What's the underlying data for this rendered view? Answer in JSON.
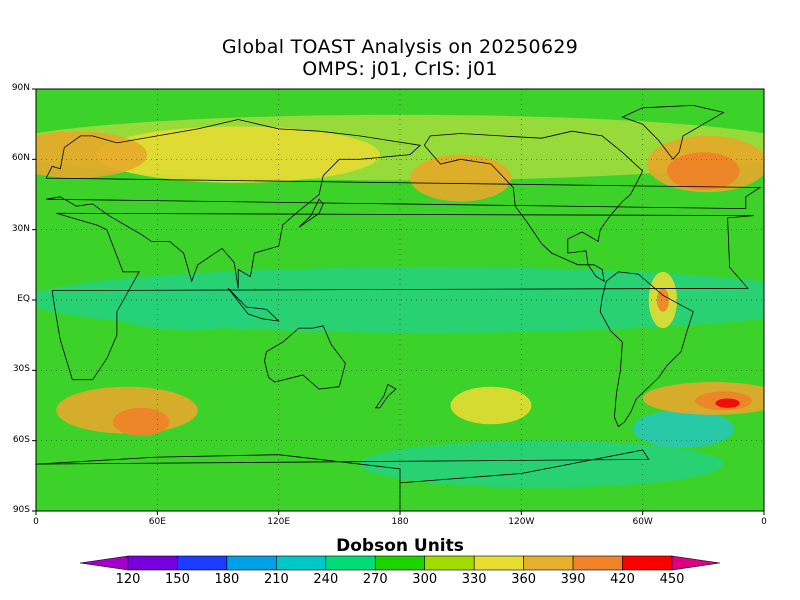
{
  "title": {
    "line1": "Global TOAST Analysis on 20250629",
    "line2": "OMPS: j01, CrIS: j01"
  },
  "map": {
    "projection": "cylindrical-equidistant",
    "lon_range": [
      0,
      360
    ],
    "lat_range": [
      -90,
      90
    ],
    "grid": "dotted",
    "lat_ticks": [
      {
        "value": 90,
        "label": "90N"
      },
      {
        "value": 60,
        "label": "60N"
      },
      {
        "value": 30,
        "label": "30N"
      },
      {
        "value": 0,
        "label": "EQ"
      },
      {
        "value": -30,
        "label": "30S"
      },
      {
        "value": -60,
        "label": "60S"
      },
      {
        "value": -90,
        "label": "90S"
      }
    ],
    "lon_ticks": [
      {
        "value": 0,
        "label": "0"
      },
      {
        "value": 60,
        "label": "60E"
      },
      {
        "value": 120,
        "label": "120E"
      },
      {
        "value": 180,
        "label": "180"
      },
      {
        "value": 240,
        "label": "120W"
      },
      {
        "value": 300,
        "label": "60W"
      },
      {
        "value": 360,
        "label": "0"
      }
    ],
    "background_level_color": "#3cd22a",
    "ozone_regions": [
      {
        "name": "tropical band",
        "lon": 195,
        "lat": 0,
        "rlon": 200,
        "rlat": 14,
        "color": "#26d27a"
      },
      {
        "name": "indian ocean low",
        "lon": 75,
        "lat": -3,
        "rlon": 40,
        "rlat": 10,
        "color": "#26d27a"
      },
      {
        "name": "south atlantic low",
        "lon": 320,
        "lat": -55,
        "rlon": 25,
        "rlat": 8,
        "color": "#26c8b4"
      },
      {
        "name": "southern ocean low",
        "lon": 250,
        "lat": -70,
        "rlon": 90,
        "rlat": 10,
        "color": "#26d27a"
      },
      {
        "name": "northern high band",
        "lon": 180,
        "lat": 65,
        "rlon": 200,
        "rlat": 14,
        "color": "#a0dc3c"
      },
      {
        "name": "east asia high",
        "lon": 100,
        "lat": 62,
        "rlon": 70,
        "rlat": 12,
        "color": "#e6dc32"
      },
      {
        "name": "europe high",
        "lon": 20,
        "lat": 62,
        "rlon": 35,
        "rlat": 10,
        "color": "#e6a82a"
      },
      {
        "name": "pacific high",
        "lon": 210,
        "lat": 52,
        "rlon": 25,
        "rlat": 10,
        "color": "#e6a82a"
      },
      {
        "name": "atlantic high",
        "lon": 332,
        "lat": 58,
        "rlon": 30,
        "rlat": 12,
        "color": "#e6a82a"
      },
      {
        "name": "atlantic core",
        "lon": 330,
        "lat": 55,
        "rlon": 18,
        "rlat": 8,
        "color": "#f08228"
      },
      {
        "name": "south indian high",
        "lon": 45,
        "lat": -47,
        "rlon": 35,
        "rlat": 10,
        "color": "#e6a82a"
      },
      {
        "name": "south indian core",
        "lon": 52,
        "lat": -52,
        "rlon": 14,
        "rlat": 6,
        "color": "#f08228"
      },
      {
        "name": "south pacific high",
        "lon": 225,
        "lat": -45,
        "rlon": 20,
        "rlat": 8,
        "color": "#e6dc32"
      },
      {
        "name": "south atlantic high",
        "lon": 335,
        "lat": -42,
        "rlon": 35,
        "rlat": 7,
        "color": "#e6a82a"
      },
      {
        "name": "south atlantic core",
        "lon": 340,
        "lat": -43,
        "rlon": 14,
        "rlat": 4,
        "color": "#f08228"
      },
      {
        "name": "south atlantic max",
        "lon": 342,
        "lat": -44,
        "rlon": 6,
        "rlat": 2,
        "color": "#f00000"
      },
      {
        "name": "brazil feature",
        "lon": 310,
        "lat": 0,
        "rlon": 7,
        "rlat": 12,
        "color": "#e6dc32"
      },
      {
        "name": "brazil core",
        "lon": 310,
        "lat": 0,
        "rlon": 3,
        "rlat": 5,
        "color": "#f08228"
      }
    ]
  },
  "colorbar": {
    "title": "Dobson Units",
    "levels": [
      "120",
      "150",
      "180",
      "210",
      "240",
      "270",
      "300",
      "330",
      "360",
      "390",
      "420",
      "450"
    ],
    "colors": [
      "#a000c8",
      "#7800dc",
      "#1e3cff",
      "#00a0e6",
      "#00c8c8",
      "#00dc78",
      "#1ed200",
      "#a0dc00",
      "#e6dc32",
      "#e6af2d",
      "#f08228",
      "#fa0000",
      "#dc0082"
    ]
  }
}
